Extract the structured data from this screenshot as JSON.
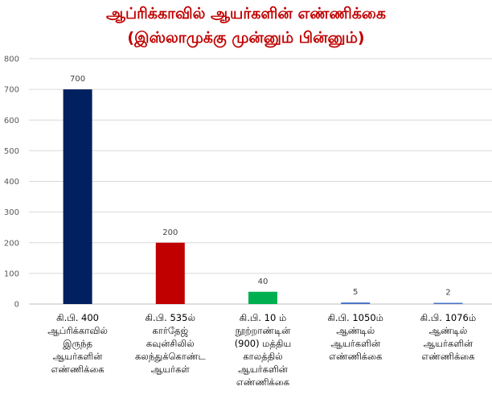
{
  "chart_data": {
    "type": "bar",
    "title_lines": [
      "ஆப்ரிக்காவில் ஆயர்களின் எண்ணிக்கை",
      "(இஸ்லாமுக்கு முன்னும் பின்னும்)"
    ],
    "categories": [
      [
        "கி.பி. 400",
        "ஆப்ரிக்காவில்",
        "இருந்த",
        "ஆயர்களின்",
        "எண்ணிக்கை"
      ],
      [
        "கி.பி. 535ல்",
        "கார்தேஜ்",
        "கவுன்சிலில்",
        "கலந்துக்கொண்ட",
        "ஆயர்கள்"
      ],
      [
        "கி.பி. 10 ம்",
        "நூற்றாண்டின்",
        "(900) மத்திய",
        "காலத்தில்",
        "ஆயர்களின்",
        "எண்ணிக்கை"
      ],
      [
        "கி.பி. 1050ம்",
        "ஆண்டில்",
        "ஆயர்களின்",
        "எண்ணிக்கை"
      ],
      [
        "கி.பி. 1076ம்",
        "ஆண்டில்",
        "ஆயர்களின்",
        "எண்ணிக்கை"
      ]
    ],
    "values": [
      700,
      200,
      40,
      5,
      2
    ],
    "data_labels": [
      "700",
      "200",
      "40",
      "5",
      "2"
    ],
    "bar_colors": [
      "#002060",
      "#c00000",
      "#00b050",
      "#4472c4",
      "#4472c4"
    ],
    "ylim": [
      0,
      800
    ],
    "yticks": [
      "0",
      "100",
      "200",
      "300",
      "400",
      "500",
      "600",
      "700",
      "800"
    ],
    "grid": true,
    "title_color": "#c00000"
  }
}
